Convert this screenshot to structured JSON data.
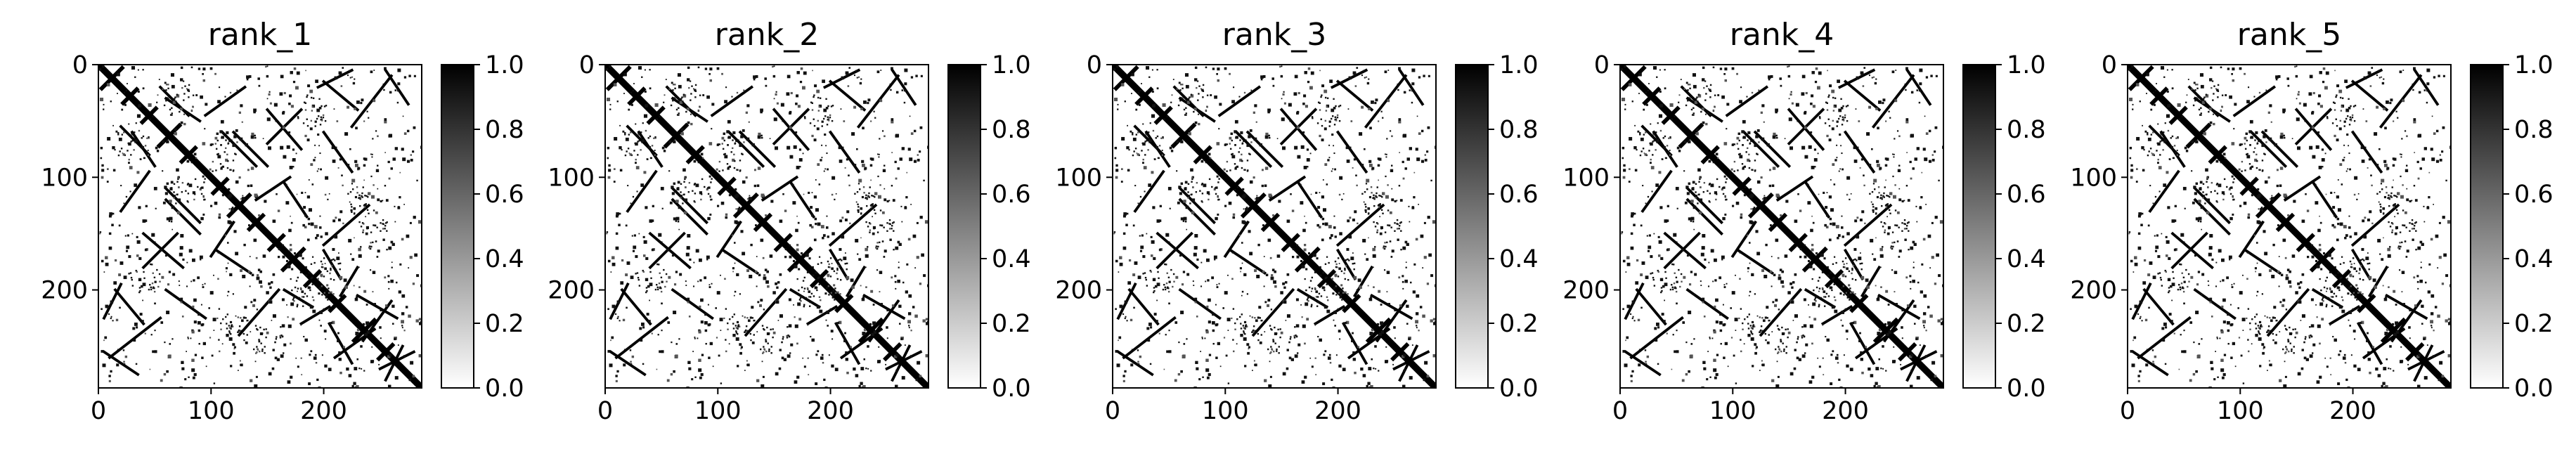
{
  "chart_data": [
    {
      "type": "heatmap",
      "title": "rank_1",
      "xlim": [
        0,
        287
      ],
      "ylim": [
        287,
        0
      ],
      "x_ticks": [
        0,
        100,
        200
      ],
      "y_ticks": [
        0,
        100,
        200
      ],
      "colorbar": {
        "range": [
          0.0,
          1.0
        ],
        "ticks": [
          "0.0",
          "0.2",
          "0.4",
          "0.6",
          "0.8",
          "1.0"
        ],
        "colormap": "Greys"
      },
      "colors": {
        "low": "#ffffff",
        "high": "#000000"
      }
    },
    {
      "type": "heatmap",
      "title": "rank_2",
      "xlim": [
        0,
        287
      ],
      "ylim": [
        287,
        0
      ],
      "x_ticks": [
        0,
        100,
        200
      ],
      "y_ticks": [
        0,
        100,
        200
      ],
      "colorbar": {
        "range": [
          0.0,
          1.0
        ],
        "ticks": [
          "0.0",
          "0.2",
          "0.4",
          "0.6",
          "0.8",
          "1.0"
        ],
        "colormap": "Greys"
      },
      "colors": {
        "low": "#ffffff",
        "high": "#000000"
      }
    },
    {
      "type": "heatmap",
      "title": "rank_3",
      "xlim": [
        0,
        287
      ],
      "ylim": [
        287,
        0
      ],
      "x_ticks": [
        0,
        100,
        200
      ],
      "y_ticks": [
        0,
        100,
        200
      ],
      "colorbar": {
        "range": [
          0.0,
          1.0
        ],
        "ticks": [
          "0.0",
          "0.2",
          "0.4",
          "0.6",
          "0.8",
          "1.0"
        ],
        "colormap": "Greys"
      },
      "colors": {
        "low": "#ffffff",
        "high": "#000000"
      }
    },
    {
      "type": "heatmap",
      "title": "rank_4",
      "xlim": [
        0,
        287
      ],
      "ylim": [
        287,
        0
      ],
      "x_ticks": [
        0,
        100,
        200
      ],
      "y_ticks": [
        0,
        100,
        200
      ],
      "colorbar": {
        "range": [
          0.0,
          1.0
        ],
        "ticks": [
          "0.0",
          "0.2",
          "0.4",
          "0.6",
          "0.8",
          "1.0"
        ],
        "colormap": "Greys"
      },
      "colors": {
        "low": "#ffffff",
        "high": "#000000"
      }
    },
    {
      "type": "heatmap",
      "title": "rank_5",
      "xlim": [
        0,
        287
      ],
      "ylim": [
        287,
        0
      ],
      "x_ticks": [
        0,
        100,
        200
      ],
      "y_ticks": [
        0,
        100,
        200
      ],
      "colorbar": {
        "range": [
          0.0,
          1.0
        ],
        "ticks": [
          "0.0",
          "0.2",
          "0.4",
          "0.6",
          "0.8",
          "1.0"
        ],
        "colormap": "Greys"
      },
      "colors": {
        "low": "#ffffff",
        "high": "#000000"
      }
    }
  ]
}
